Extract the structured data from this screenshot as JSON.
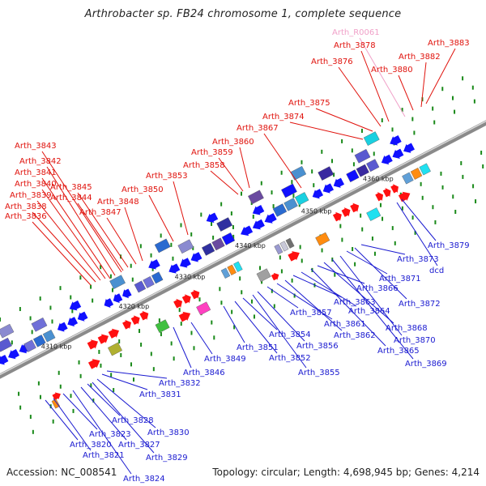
{
  "title": "Arthrobacter sp. FB24 chromosome 1, complete sequence",
  "footer": {
    "accession": "Accession: NC_008541",
    "summary": "Topology: circular; Length: 4,698,945 bp; Genes: 4,214"
  },
  "scale_labels": [
    "4310 kbp",
    "4320 kbp",
    "4330 kbp",
    "4340 kbp",
    "4350 kbp",
    "4360 kbp"
  ],
  "top_labels": [
    "Arth_3836",
    "Arth_3838",
    "Arth_3839",
    "Arth_3840",
    "Arth_3841",
    "Arth_3842",
    "Arth_3843",
    "Arth_3844",
    "Arth_3845",
    "Arth_3847",
    "Arth_3848",
    "Arth_3850",
    "Arth_3853",
    "Arth_3858",
    "Arth_3859",
    "Arth_3860",
    "Arth_3867",
    "Arth_3874",
    "Arth_3875",
    "Arth_3876",
    "Arth_3878",
    "Arth_R0061",
    "Arth_3880",
    "Arth_3882",
    "Arth_3883"
  ],
  "bottom_labels": [
    "Arth_3820",
    "Arth_3821",
    "Arth_3823",
    "Arth_3824",
    "Arth_3827",
    "Arth_3828",
    "Arth_3829",
    "Arth_3830",
    "Arth_3831",
    "Arth_3832",
    "Arth_3846",
    "Arth_3849",
    "Arth_3851",
    "Arth_3852",
    "Arth_3854",
    "Arth_3855",
    "Arth_3856",
    "Arth_3857",
    "Arth_3861",
    "Arth_3862",
    "Arth_3863",
    "Arth_3864",
    "Arth_3865",
    "Arth_3866",
    "Arth_3868",
    "Arth_3869",
    "Arth_3870",
    "Arth_3871",
    "Arth_3872",
    "Arth_3873",
    "dcd",
    "Arth_3879"
  ],
  "colors": {
    "backbone": "#8a8a8a",
    "top_label": "#e0120c",
    "rna_label": "#f0a0c8",
    "bottom_label": "#1a1ad0",
    "forward_gene": "#ff1010",
    "reverse_gene": "#1010ff",
    "tick_green": "#1a8a1a"
  }
}
